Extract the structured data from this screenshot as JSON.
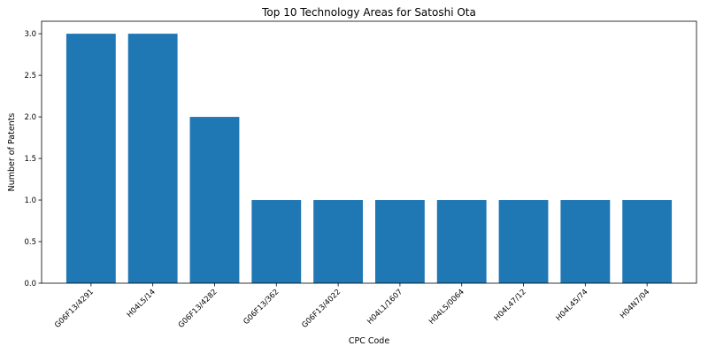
{
  "chart_data": {
    "type": "bar",
    "title": "Top 10 Technology Areas for Satoshi Ota",
    "xlabel": "CPC Code",
    "ylabel": "Number of Patents",
    "categories": [
      "G06F13/4291",
      "H04L5/14",
      "G06F13/4282",
      "G06F13/362",
      "G06F13/4022",
      "H04L1/1607",
      "H04L5/0064",
      "H04L47/12",
      "H04L45/74",
      "H04N7/04"
    ],
    "values": [
      3,
      3,
      2,
      1,
      1,
      1,
      1,
      1,
      1,
      1
    ],
    "ylim": [
      0,
      3.15
    ],
    "yticks": [
      "0.0",
      "0.5",
      "1.0",
      "1.5",
      "2.0",
      "2.5",
      "3.0"
    ],
    "grid": false,
    "colors": {
      "bar": "#1f77b4"
    }
  }
}
